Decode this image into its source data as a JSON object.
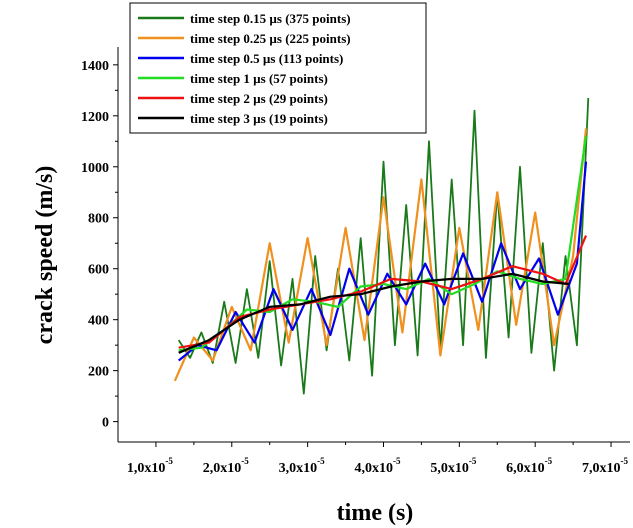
{
  "chart_data": {
    "type": "line",
    "title": "",
    "xlabel": "time (s)",
    "ylabel": "crack speed (m/s)",
    "xlim": [
      5e-06,
      7.25e-05
    ],
    "ylim": [
      -80,
      1470
    ],
    "grid": false,
    "legend_position": "top-left",
    "x_ticks": [
      {
        "value": 1e-05,
        "mantissa": "1,0x10",
        "exponent": "-5"
      },
      {
        "value": 2e-05,
        "mantissa": "2,0x10",
        "exponent": "-5"
      },
      {
        "value": 3e-05,
        "mantissa": "3,0x10",
        "exponent": "-5"
      },
      {
        "value": 4e-05,
        "mantissa": "4,0x10",
        "exponent": "-5"
      },
      {
        "value": 5e-05,
        "mantissa": "5,0x10",
        "exponent": "-5"
      },
      {
        "value": 6e-05,
        "mantissa": "6,0x10",
        "exponent": "-5"
      },
      {
        "value": 7e-05,
        "mantissa": "7,0x10",
        "exponent": "-5"
      }
    ],
    "y_ticks": [
      {
        "value": 0,
        "label": "0"
      },
      {
        "value": 200,
        "label": "200"
      },
      {
        "value": 400,
        "label": "400"
      },
      {
        "value": 600,
        "label": "600"
      },
      {
        "value": 800,
        "label": "800"
      },
      {
        "value": 1000,
        "label": "1000"
      },
      {
        "value": 1200,
        "label": "1200"
      },
      {
        "value": 1400,
        "label": "1400"
      }
    ],
    "series": [
      {
        "name": "time step 0.15 µs (375 points)",
        "color": "#1a7a1a",
        "x": [
          1.3e-05,
          1.45e-05,
          1.6e-05,
          1.75e-05,
          1.9e-05,
          2.05e-05,
          2.2e-05,
          2.35e-05,
          2.5e-05,
          2.65e-05,
          2.8e-05,
          2.95e-05,
          3.1e-05,
          3.25e-05,
          3.4e-05,
          3.55e-05,
          3.7e-05,
          3.85e-05,
          4e-05,
          4.15e-05,
          4.3e-05,
          4.45e-05,
          4.6e-05,
          4.75e-05,
          4.9e-05,
          5.05e-05,
          5.2e-05,
          5.35e-05,
          5.5e-05,
          5.65e-05,
          5.8e-05,
          5.95e-05,
          6.1e-05,
          6.25e-05,
          6.4e-05,
          6.55e-05,
          6.7e-05
        ],
        "y": [
          320,
          250,
          350,
          230,
          470,
          230,
          520,
          250,
          630,
          220,
          560,
          110,
          650,
          280,
          600,
          240,
          720,
          180,
          1020,
          300,
          850,
          260,
          1100,
          280,
          950,
          300,
          1220,
          250,
          900,
          330,
          1000,
          270,
          700,
          200,
          650,
          300,
          1270
        ]
      },
      {
        "name": "time step 0.25 µs (225 points)",
        "color": "#f0901e",
        "x": [
          1.25e-05,
          1.5e-05,
          1.75e-05,
          2e-05,
          2.25e-05,
          2.5e-05,
          2.75e-05,
          3e-05,
          3.25e-05,
          3.5e-05,
          3.75e-05,
          4e-05,
          4.25e-05,
          4.5e-05,
          4.75e-05,
          5e-05,
          5.25e-05,
          5.5e-05,
          5.75e-05,
          6e-05,
          6.25e-05,
          6.5e-05,
          6.67e-05
        ],
        "y": [
          160,
          330,
          240,
          450,
          280,
          700,
          310,
          720,
          300,
          760,
          320,
          880,
          350,
          950,
          260,
          760,
          360,
          900,
          380,
          820,
          300,
          650,
          1150
        ]
      },
      {
        "name": "time step 0.5 µs (113 points)",
        "color": "#0000ee",
        "x": [
          1.3e-05,
          1.55e-05,
          1.8e-05,
          2.05e-05,
          2.3e-05,
          2.55e-05,
          2.8e-05,
          3.05e-05,
          3.3e-05,
          3.55e-05,
          3.8e-05,
          4.05e-05,
          4.3e-05,
          4.55e-05,
          4.8e-05,
          5.05e-05,
          5.3e-05,
          5.55e-05,
          5.8e-05,
          6.05e-05,
          6.3e-05,
          6.55e-05,
          6.67e-05
        ],
        "y": [
          240,
          300,
          280,
          430,
          310,
          520,
          360,
          520,
          340,
          600,
          420,
          580,
          460,
          620,
          460,
          660,
          470,
          700,
          520,
          640,
          420,
          620,
          1020
        ]
      },
      {
        "name": "time step 1 µs (57 points)",
        "color": "#22dd22",
        "x": [
          1.3e-05,
          1.6e-05,
          1.9e-05,
          2.2e-05,
          2.5e-05,
          2.8e-05,
          3.1e-05,
          3.4e-05,
          3.7e-05,
          4e-05,
          4.3e-05,
          4.6e-05,
          4.9e-05,
          5.2e-05,
          5.5e-05,
          5.8e-05,
          6.1e-05,
          6.4e-05,
          6.67e-05
        ],
        "y": [
          280,
          290,
          360,
          440,
          430,
          480,
          470,
          450,
          530,
          540,
          520,
          560,
          500,
          540,
          590,
          560,
          540,
          560,
          1120
        ]
      },
      {
        "name": "time step 2 µs (29 points)",
        "color": "#ee1111",
        "x": [
          1.3e-05,
          1.7e-05,
          2.1e-05,
          2.5e-05,
          2.9e-05,
          3.3e-05,
          3.7e-05,
          4.1e-05,
          4.5e-05,
          4.9e-05,
          5.3e-05,
          5.7e-05,
          6.1e-05,
          6.4e-05,
          6.67e-05
        ],
        "y": [
          290,
          310,
          410,
          440,
          460,
          480,
          510,
          560,
          550,
          520,
          560,
          610,
          580,
          540,
          730
        ]
      },
      {
        "name": "time step 3 µs (19 points)",
        "color": "#000000",
        "x": [
          1.3e-05,
          1.7e-05,
          2.1e-05,
          2.5e-05,
          2.9e-05,
          3.3e-05,
          3.7e-05,
          4.1e-05,
          4.5e-05,
          4.9e-05,
          5.3e-05,
          5.7e-05,
          6.1e-05,
          6.45e-05
        ],
        "y": [
          270,
          320,
          400,
          450,
          460,
          490,
          500,
          530,
          550,
          560,
          560,
          580,
          550,
          540
        ]
      }
    ]
  }
}
